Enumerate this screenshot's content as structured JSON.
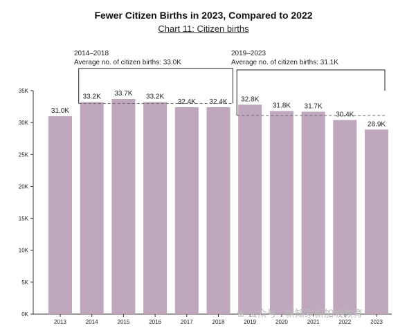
{
  "title": "Fewer Citizen Births in 2023, Compared to 2022",
  "subtitle": "Chart 11: Citizen births",
  "watermark": "❀ 公众号 · 新知家新加坡教育",
  "periods": [
    {
      "range": "2014–2018",
      "label": "Average no. of citizen births: 33.0K"
    },
    {
      "range": "2019–2023",
      "label": "Average no. of citizen births: 31.1K"
    }
  ],
  "colors": {
    "bar": "#bfa7be",
    "avg_line": "#666666",
    "axis": "#333333"
  },
  "chart_data": {
    "type": "bar",
    "title": "",
    "xlabel": "",
    "ylabel": "",
    "categories": [
      "2013",
      "2014",
      "2015",
      "2016",
      "2017",
      "2018",
      "2019",
      "2020",
      "2021",
      "2022",
      "2023"
    ],
    "values": [
      31.0,
      33.2,
      33.7,
      33.2,
      32.4,
      32.4,
      32.8,
      31.8,
      31.7,
      30.4,
      28.9
    ],
    "data_labels": [
      "31.0K",
      "33.2K",
      "33.7K",
      "33.2K",
      "32.4K",
      "32.4K",
      "32.8K",
      "31.8K",
      "31.7K",
      "30.4K",
      "28.9K"
    ],
    "ylim": [
      0,
      35
    ],
    "yticks": [
      0,
      5,
      10,
      15,
      20,
      25,
      30,
      35
    ],
    "ytick_labels": [
      "0K",
      "5K",
      "10K",
      "15K",
      "20K",
      "25K",
      "30K",
      "35K"
    ],
    "averages": [
      {
        "from": "2014",
        "to": "2018",
        "value": 33.0
      },
      {
        "from": "2019",
        "to": "2023",
        "value": 31.1
      }
    ],
    "grid": false
  }
}
